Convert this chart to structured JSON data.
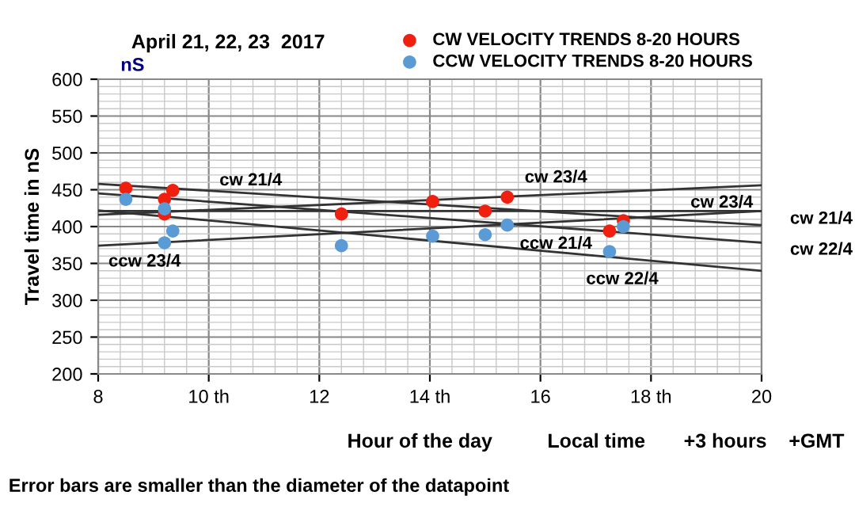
{
  "chart_data": {
    "type": "scatter",
    "title": "April 21, 22, 23  2017",
    "xlabel": "Hour of the day          Local time       +3 hours    +GMT",
    "ylabel": "Travel time in nS",
    "xlim": [
      8,
      20
    ],
    "ylim": [
      200,
      600
    ],
    "xticks": [
      8,
      {
        "value": 10,
        "label": "10 th"
      },
      12,
      {
        "value": 14,
        "label": "14 th"
      },
      16,
      {
        "value": 18,
        "label": "18 th"
      },
      20
    ],
    "yticks": [
      200,
      250,
      300,
      350,
      400,
      450,
      500,
      550,
      600
    ],
    "grid": true,
    "legend": "top right",
    "series": [
      {
        "name": "CW VELOCITY TRENDS 8-20 HOURS",
        "color": "#f02010",
        "marker": "circle",
        "x": [
          8.5,
          9.2,
          9.2,
          9.35,
          12.4,
          14.05,
          15.0,
          15.4,
          17.25,
          17.5
        ],
        "values": [
          452,
          437,
          417,
          449,
          417,
          434,
          421,
          440,
          394,
          408
        ]
      },
      {
        "name": "CCW VELOCITY TRENDS 8-20 HOURS",
        "color": "#5b9bd5",
        "marker": "circle",
        "x": [
          8.5,
          9.2,
          9.2,
          9.35,
          12.4,
          14.05,
          15.0,
          15.4,
          17.25,
          17.5
        ],
        "values": [
          437,
          424,
          378,
          394,
          374,
          387,
          389,
          402,
          366,
          400
        ]
      },
      {
        "color": "#333333",
        "type": "line",
        "x": [
          8,
          20
        ],
        "values": [
          458,
          402
        ]
      },
      {
        "color": "#333333",
        "type": "line",
        "x": [
          8,
          20
        ],
        "values": [
          445,
          378
        ]
      },
      {
        "color": "#333333",
        "type": "line",
        "x": [
          8,
          20
        ],
        "values": [
          416,
          456
        ]
      },
      {
        "color": "#333333",
        "type": "line",
        "x": [
          8,
          20
        ],
        "values": [
          421,
          421
        ]
      },
      {
        "color": "#333333",
        "type": "line",
        "x": [
          8,
          20
        ],
        "values": [
          422,
          340
        ]
      },
      {
        "color": "#333333",
        "type": "line",
        "x": [
          8,
          20
        ],
        "values": [
          374,
          421
        ]
      }
    ],
    "annotations": [
      "cw 21/4",
      "cw 23/4",
      "cw 23/4",
      "cw 21/4",
      "cw 22/4",
      "ccw 21/4",
      "ccw 22/4",
      "ccw 23/4",
      "nS",
      "Error bars are smaller than the diameter of the datapoint"
    ]
  }
}
